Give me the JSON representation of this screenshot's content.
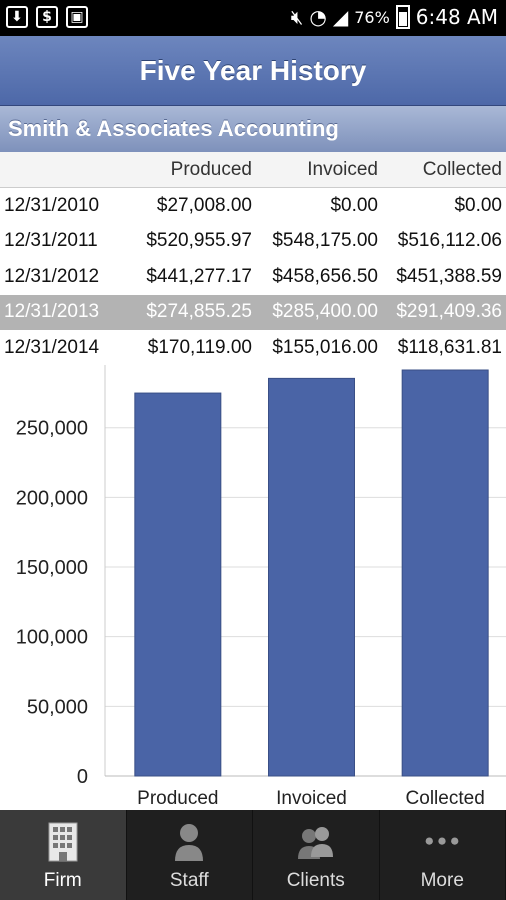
{
  "status_bar": {
    "battery": "76%",
    "time": "6:48 AM",
    "icons": [
      "download-icon",
      "dollar-icon",
      "image-icon",
      "mute-icon",
      "wifi-icon",
      "signal-icon",
      "battery-icon"
    ]
  },
  "header": {
    "title": "Five Year History"
  },
  "firm": {
    "name": "Smith & Associates Accounting"
  },
  "table": {
    "columns": [
      "",
      "Produced",
      "Invoiced",
      "Collected"
    ],
    "rows": [
      {
        "date": "12/31/2010",
        "produced": "$27,008.00",
        "invoiced": "$0.00",
        "collected": "$0.00"
      },
      {
        "date": "12/31/2011",
        "produced": "$520,955.97",
        "invoiced": "$548,175.00",
        "collected": "$516,112.06"
      },
      {
        "date": "12/31/2012",
        "produced": "$441,277.17",
        "invoiced": "$458,656.50",
        "collected": "$451,388.59"
      },
      {
        "date": "12/31/2013",
        "produced": "$274,855.25",
        "invoiced": "$285,400.00",
        "collected": "$291,409.36",
        "selected": true
      },
      {
        "date": "12/31/2014",
        "produced": "$170,119.00",
        "invoiced": "$155,016.00",
        "collected": "$118,631.81"
      }
    ]
  },
  "chart_data": {
    "type": "bar",
    "categories": [
      "Produced",
      "Invoiced",
      "Collected"
    ],
    "values": [
      274855.25,
      285400.0,
      291409.36
    ],
    "ylim": [
      0,
      295000
    ],
    "yticks": [
      0,
      50000,
      100000,
      150000,
      200000,
      250000
    ],
    "ytick_labels": [
      "0",
      "50,000",
      "100,000",
      "150,000",
      "200,000",
      "250,000"
    ],
    "grid": true,
    "bar_color": "#4a64a6"
  },
  "tabs": [
    {
      "label": "Firm",
      "icon": "building-icon",
      "active": true
    },
    {
      "label": "Staff",
      "icon": "person-icon",
      "active": false
    },
    {
      "label": "Clients",
      "icon": "people-icon",
      "active": false
    },
    {
      "label": "More",
      "icon": "more-dots-icon",
      "active": false
    }
  ]
}
